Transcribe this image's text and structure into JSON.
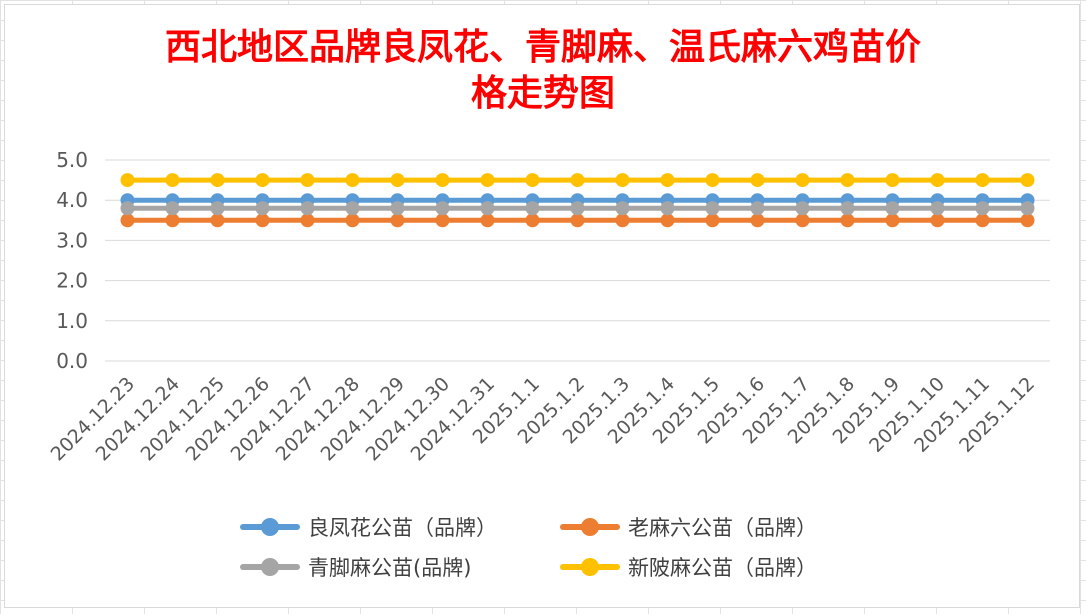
{
  "chart_data": {
    "type": "line",
    "title": "西北地区品牌良凤花、青脚麻、温氏麻六鸡苗价格走势图",
    "title_lines": [
      "西北地区品牌良凤花、青脚麻、温氏麻六鸡苗价",
      "格走势图"
    ],
    "title_color": "#ff0000",
    "categories": [
      "2024.12.23",
      "2024.12.24",
      "2024.12.25",
      "2024.12.26",
      "2024.12.27",
      "2024.12.28",
      "2024.12.29",
      "2024.12.30",
      "2024.12.31",
      "2025.1.1",
      "2025.1.2",
      "2025.1.3",
      "2025.1.4",
      "2025.1.5",
      "2025.1.6",
      "2025.1.7",
      "2025.1.8",
      "2025.1.9",
      "2025.1.10",
      "2025.1.11",
      "2025.1.12"
    ],
    "y_ticks": [
      "0.0",
      "1.0",
      "2.0",
      "3.0",
      "4.0",
      "5.0"
    ],
    "ylim": [
      0,
      5
    ],
    "grid": true,
    "legend_position": "bottom",
    "series": [
      {
        "name": "良凤花公苗（品牌）",
        "color": "#5b9bd5",
        "values": [
          4,
          4,
          4,
          4,
          4,
          4,
          4,
          4,
          4,
          4,
          4,
          4,
          4,
          4,
          4,
          4,
          4,
          4,
          4,
          4,
          4
        ]
      },
      {
        "name": "老麻六公苗（品牌）",
        "color": "#ed7d31",
        "values": [
          3.5,
          3.5,
          3.5,
          3.5,
          3.5,
          3.5,
          3.5,
          3.5,
          3.5,
          3.5,
          3.5,
          3.5,
          3.5,
          3.5,
          3.5,
          3.5,
          3.5,
          3.5,
          3.5,
          3.5,
          3.5
        ]
      },
      {
        "name": "青脚麻公苗(品牌)",
        "color": "#a5a5a5",
        "values": [
          3.8,
          3.8,
          3.8,
          3.8,
          3.8,
          3.8,
          3.8,
          3.8,
          3.8,
          3.8,
          3.8,
          3.8,
          3.8,
          3.8,
          3.8,
          3.8,
          3.8,
          3.8,
          3.8,
          3.8,
          3.8
        ]
      },
      {
        "name": "新陂麻公苗（品牌）",
        "color": "#ffc000",
        "values": [
          4.5,
          4.5,
          4.5,
          4.5,
          4.5,
          4.5,
          4.5,
          4.5,
          4.5,
          4.5,
          4.5,
          4.5,
          4.5,
          4.5,
          4.5,
          4.5,
          4.5,
          4.5,
          4.5,
          4.5,
          4.5
        ]
      }
    ]
  }
}
